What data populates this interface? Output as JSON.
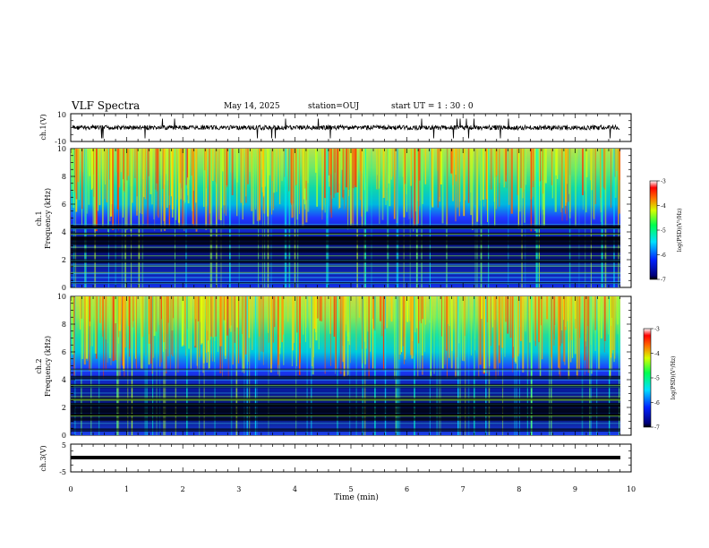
{
  "header": {
    "title": "VLF Spectra",
    "date": "May 14, 2025",
    "station": "station=OUJ",
    "start": "start  UT =   1 : 30 : 0"
  },
  "chart_data": [
    {
      "type": "line",
      "ylabel": "ch.1(V)",
      "ylim": [
        -10,
        10
      ],
      "yticks": [
        "10",
        "-10"
      ],
      "baseline": 0,
      "xlim": [
        0,
        10
      ]
    },
    {
      "type": "heatmap",
      "ylabel_line1": "ch.1",
      "ylabel_line2": "Frequency (kHz)",
      "ylim": [
        0,
        10
      ],
      "yticks": [
        "0",
        "2",
        "4",
        "6",
        "8",
        "10"
      ],
      "xlim": [
        0,
        10
      ],
      "colorbar": {
        "label": "log(PSD)(V²/Hz)",
        "range": [
          -7,
          -3
        ],
        "ticks": [
          "-3",
          "-4",
          "-5",
          "-6",
          "-7"
        ]
      }
    },
    {
      "type": "heatmap",
      "ylabel_line1": "ch.2",
      "ylabel_line2": "Frequency (kHz)",
      "ylim": [
        0,
        10
      ],
      "yticks": [
        "0",
        "2",
        "4",
        "6",
        "8",
        "10"
      ],
      "xlim": [
        0,
        10
      ],
      "colorbar": {
        "label": "log(PSD)(V²/Hz)",
        "range": [
          -7,
          -3
        ],
        "ticks": [
          "-3",
          "-4",
          "-5",
          "-6",
          "-7"
        ]
      }
    },
    {
      "type": "line",
      "ylabel": "ch.3(V)",
      "ylim": [
        -5,
        5
      ],
      "yticks": [
        "5",
        "-5"
      ],
      "baseline": 0,
      "xlim": [
        0,
        10
      ]
    }
  ],
  "xaxis": {
    "label": "Time (min)",
    "range": [
      0,
      10
    ],
    "ticks": [
      "0",
      "1",
      "2",
      "3",
      "4",
      "5",
      "6",
      "7",
      "8",
      "9",
      "10"
    ]
  }
}
